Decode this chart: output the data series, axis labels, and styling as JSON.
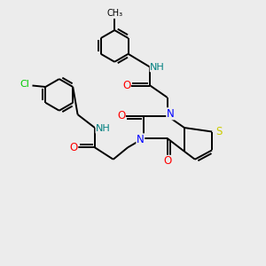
{
  "background_color": "#ececec",
  "atom_colors": {
    "N": "#0000ff",
    "O": "#ff0000",
    "S": "#cccc00",
    "Cl": "#00cc00",
    "NH": "#008080"
  },
  "bond_color": "#000000",
  "line_width": 1.4,
  "font_size": 8.5
}
